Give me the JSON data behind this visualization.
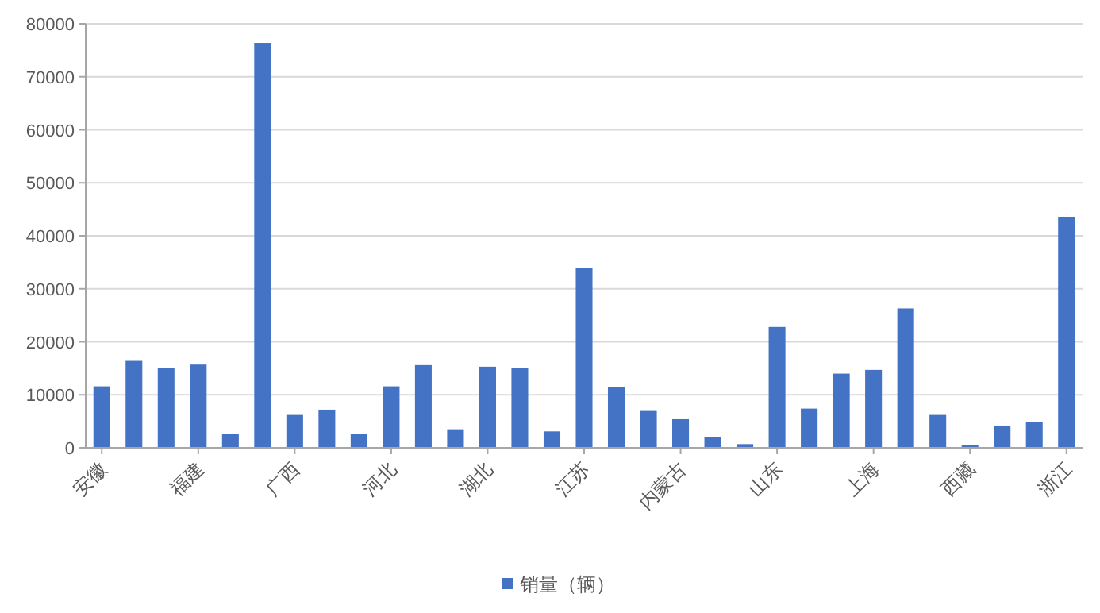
{
  "chart_data": {
    "type": "bar",
    "categories": [
      "安徽",
      null,
      null,
      "福建",
      null,
      null,
      "广西",
      null,
      null,
      "河北",
      null,
      null,
      "湖北",
      null,
      null,
      "江苏",
      null,
      null,
      "内蒙古",
      null,
      null,
      "山东",
      null,
      null,
      "上海",
      null,
      null,
      "西藏",
      null,
      null,
      "浙江"
    ],
    "series": [
      {
        "name": "销量（辆）",
        "color": "#4472c4",
        "values": [
          11600,
          16400,
          15000,
          15700,
          2600,
          76400,
          6200,
          7200,
          2600,
          11600,
          15600,
          3500,
          15300,
          15000,
          3100,
          33900,
          11400,
          7100,
          5400,
          2100,
          700,
          22800,
          7400,
          14000,
          14700,
          26300,
          6200,
          500,
          4200,
          4800,
          43600
        ]
      }
    ],
    "ylim": [
      0,
      80000
    ],
    "yticks": [
      0,
      10000,
      20000,
      30000,
      40000,
      50000,
      60000,
      70000,
      80000
    ],
    "grid": "y",
    "legend": "bottom"
  }
}
